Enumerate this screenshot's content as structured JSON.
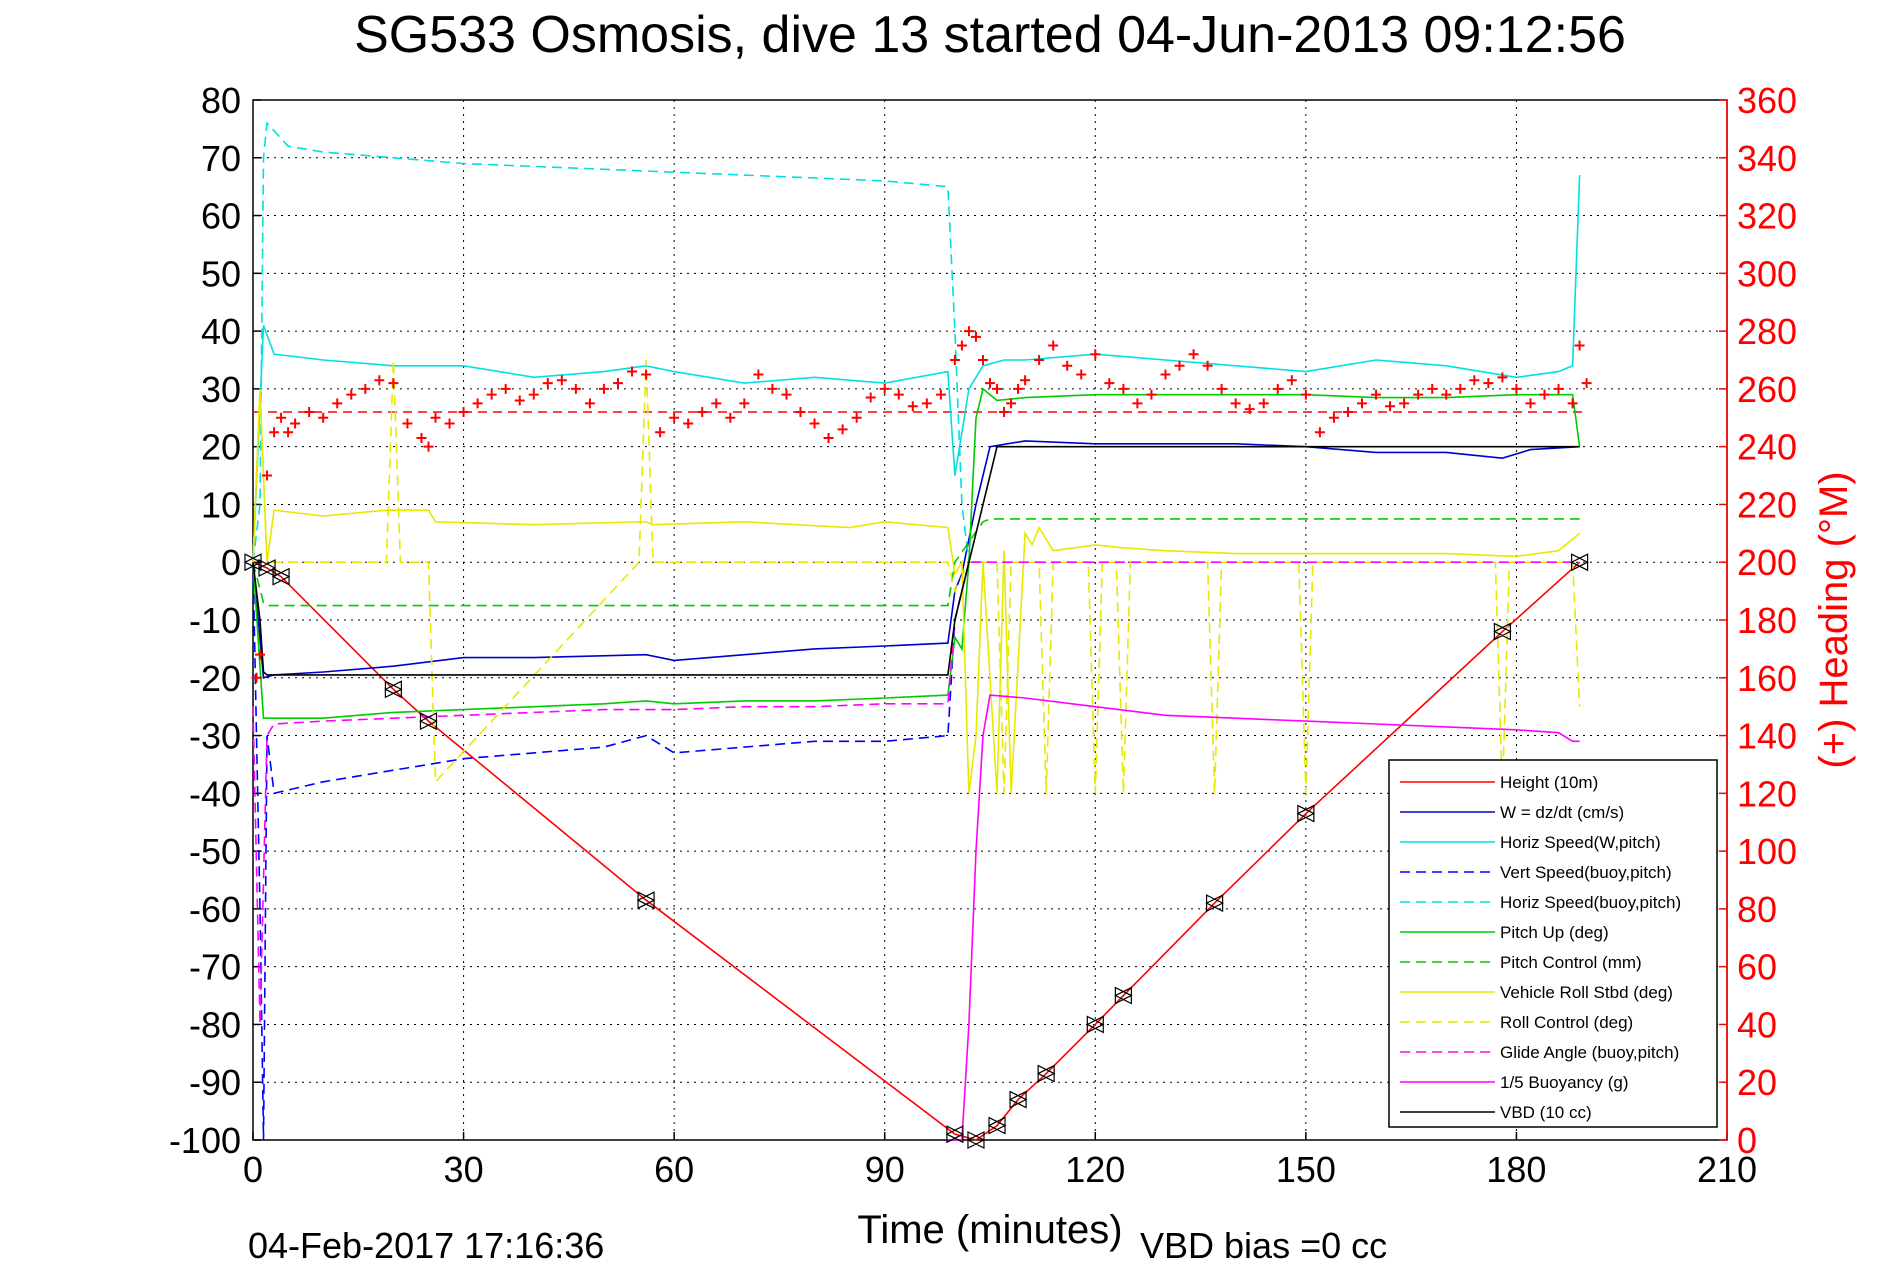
{
  "chart_data": {
    "type": "line",
    "title": "SG533 Osmosis, dive 13 started 04-Jun-2013 09:12:56",
    "xlabel": "Time (minutes)",
    "ylabel_left": "",
    "ylabel_right": "(+) Heading (°M)",
    "xlim": [
      0,
      210
    ],
    "ylim_left": [
      -100,
      80
    ],
    "ylim_right": [
      0,
      360
    ],
    "x_ticks": [
      "0",
      "30",
      "60",
      "90",
      "120",
      "150",
      "180",
      "210"
    ],
    "y_ticks_left": [
      "80",
      "70",
      "60",
      "50",
      "40",
      "30",
      "20",
      "10",
      "0",
      "-10",
      "-20",
      "-30",
      "-40",
      "-50",
      "-60",
      "-70",
      "-80",
      "-90",
      "-100"
    ],
    "y_ticks_right": [
      "360",
      "340",
      "320",
      "300",
      "280",
      "260",
      "240",
      "220",
      "200",
      "180",
      "160",
      "140",
      "120",
      "100",
      "80",
      "60",
      "40",
      "20",
      "0"
    ],
    "grid": true,
    "legend_position": "bottom-right",
    "footer_date": "04-Feb-2017 17:16:36",
    "footer_vbd": "VBD bias =0 cc",
    "target_heading": 252,
    "series": [
      {
        "name": "Height (10m)",
        "color": "#ff0000",
        "style": "solid",
        "x": [
          0,
          2,
          4,
          20,
          25,
          56,
          100,
          103,
          106,
          109,
          113,
          120,
          124,
          137,
          150,
          178,
          189
        ],
        "y": [
          0,
          -1,
          -2.5,
          -22,
          -27.5,
          -58.5,
          -99,
          -100,
          -97.5,
          -93,
          -88.5,
          -80,
          -75,
          -59,
          -43.5,
          -12,
          0
        ]
      },
      {
        "name": "W = dz/dt (cm/s)",
        "color": "#0000cc",
        "style": "solid",
        "x": [
          0,
          1.5,
          3,
          10,
          20,
          30,
          40,
          56,
          60,
          70,
          80,
          90,
          99,
          100,
          101,
          103,
          105,
          110,
          120,
          130,
          140,
          150,
          160,
          170,
          178,
          182,
          189
        ],
        "y": [
          0,
          -20,
          -19.5,
          -19,
          -18,
          -16.5,
          -16.5,
          -16,
          -17,
          -16,
          -15,
          -14.5,
          -14,
          -5,
          -2,
          10,
          20,
          21,
          20.5,
          20.5,
          20.5,
          20,
          19,
          19,
          18,
          19.5,
          20
        ]
      },
      {
        "name": "Horiz Speed(W,pitch)",
        "color": "#00e0e0",
        "style": "solid",
        "x": [
          0,
          1.5,
          3,
          10,
          20,
          30,
          40,
          50,
          56,
          60,
          70,
          80,
          90,
          99,
          100,
          102,
          104,
          107,
          110,
          120,
          130,
          140,
          150,
          160,
          170,
          180,
          186,
          188,
          189
        ],
        "y": [
          0,
          41,
          36,
          35,
          34,
          34,
          32,
          33,
          34,
          33,
          31,
          32,
          31,
          33,
          15,
          30,
          34,
          35,
          35,
          36,
          35,
          34,
          33,
          35,
          34,
          32,
          33,
          34,
          67
        ]
      },
      {
        "name": "Vert Speed(buoy,pitch)",
        "color": "#0000ff",
        "style": "dashed",
        "x": [
          0,
          1,
          1.5,
          2,
          3,
          10,
          20,
          30,
          40,
          50,
          56,
          60,
          70,
          80,
          90,
          99,
          100,
          102,
          104
        ],
        "y": [
          0,
          -60,
          -100,
          -30,
          -40,
          -38,
          -36,
          -34,
          -33,
          -32,
          -30,
          -33,
          -32,
          -31,
          -31,
          -30,
          -10,
          0,
          0
        ]
      },
      {
        "name": "Horiz Speed(buoy,pitch)",
        "color": "#00e0e0",
        "style": "dashed",
        "x": [
          0,
          1,
          1.5,
          2,
          5,
          10,
          20,
          30,
          40,
          50,
          60,
          70,
          80,
          90,
          99,
          100,
          101,
          102,
          104
        ],
        "y": [
          0,
          10,
          70,
          76,
          72,
          71,
          70,
          69,
          68.5,
          68,
          67.5,
          67,
          66.5,
          66,
          65,
          40,
          10,
          0,
          0
        ]
      },
      {
        "name": "Pitch Up (deg)",
        "color": "#00cc00",
        "style": "solid",
        "x": [
          0,
          1.5,
          3,
          10,
          20,
          30,
          40,
          50,
          56,
          60,
          70,
          80,
          90,
          99,
          100,
          101,
          102,
          103,
          104,
          106,
          110,
          120,
          130,
          140,
          150,
          160,
          170,
          180,
          188,
          189
        ],
        "y": [
          0,
          -27,
          -27,
          -27,
          -26,
          -25.5,
          -25,
          -24.5,
          -24,
          -24.5,
          -24,
          -24,
          -23.5,
          -23,
          -13,
          -15,
          0,
          25,
          30,
          28,
          28.5,
          29,
          29,
          29,
          29,
          28.5,
          28.5,
          29,
          29,
          20
        ]
      },
      {
        "name": "Pitch Control (mm)",
        "color": "#00cc00",
        "style": "dashed",
        "x": [
          0,
          1.5,
          2,
          10,
          20,
          40,
          60,
          80,
          99,
          100,
          104,
          105,
          120,
          140,
          160,
          180,
          189
        ],
        "y": [
          0,
          -7,
          -7.5,
          -7.5,
          -7.5,
          -7.5,
          -7.5,
          -7.5,
          -7.5,
          0,
          7,
          7.5,
          7.5,
          7.5,
          7.5,
          7.5,
          7.5
        ]
      },
      {
        "name": "Vehicle Roll Stbd (deg)",
        "color": "#e8e800",
        "style": "solid",
        "x": [
          0,
          1,
          2,
          3,
          10,
          19,
          20,
          21,
          25,
          26,
          40,
          55,
          56,
          57,
          70,
          85,
          90,
          99,
          100,
          101,
          102,
          103,
          104,
          106,
          107,
          108,
          110,
          111,
          112,
          114,
          120,
          124,
          130,
          140,
          150,
          160,
          170,
          180,
          186,
          188,
          189
        ],
        "y": [
          0,
          30,
          0,
          9,
          8,
          9,
          9,
          9,
          9,
          7,
          6.5,
          7,
          7,
          6.5,
          7,
          6,
          7,
          6,
          -2,
          0,
          -40,
          -30,
          0,
          -40,
          2,
          -40,
          5,
          3,
          6,
          2,
          3,
          2.5,
          2,
          1.5,
          1.5,
          1.5,
          1.5,
          1,
          2,
          4,
          5
        ]
      },
      {
        "name": "Roll Control (deg)",
        "color": "#e8e800",
        "style": "dashed",
        "x": [
          0,
          1,
          2,
          3,
          19,
          20,
          21,
          25,
          26,
          55,
          56,
          57,
          99,
          100,
          102,
          104,
          106,
          107,
          108,
          109,
          112,
          113,
          114,
          119,
          120,
          121,
          123,
          124,
          125,
          136,
          137,
          138,
          149,
          150,
          151,
          177,
          178,
          179,
          188,
          189
        ],
        "y": [
          0,
          30,
          0,
          0,
          0,
          35,
          0,
          0,
          -38,
          0,
          35,
          0,
          0,
          -5,
          0,
          0,
          0,
          -40,
          0,
          0,
          0,
          -40,
          0,
          0,
          -40,
          0,
          0,
          -40,
          0,
          0,
          -40,
          0,
          0,
          -40,
          0,
          0,
          -40,
          0,
          0,
          -25
        ]
      },
      {
        "name": "Glide Angle (buoy,pitch)",
        "color": "#ff00ff",
        "style": "dashed",
        "x": [
          0,
          1,
          2,
          3,
          10,
          20,
          30,
          40,
          50,
          60,
          70,
          80,
          90,
          99,
          100,
          102,
          104,
          120,
          140,
          160,
          180,
          189
        ],
        "y": [
          -25,
          -80,
          -30,
          -28,
          -27.5,
          -27,
          -26.5,
          -26,
          -25.5,
          -25.5,
          -25,
          -25,
          -24.5,
          -24.5,
          -10,
          0,
          0,
          0,
          0,
          0,
          0,
          0
        ]
      },
      {
        "name": "1/5 Buoyancy (g)",
        "color": "#ff00ff",
        "style": "solid",
        "x": [
          99,
          100,
          101,
          102,
          103,
          104,
          105,
          110,
          120,
          130,
          140,
          150,
          160,
          170,
          180,
          186,
          188,
          189
        ],
        "y": [
          -100,
          -100,
          -100,
          -80,
          -50,
          -30,
          -23,
          -23.5,
          -25,
          -26.5,
          -27,
          -27.5,
          -28,
          -28.5,
          -29,
          -29.5,
          -31,
          -31
        ]
      },
      {
        "name": "VBD (10 cc)",
        "color": "#000000",
        "style": "solid",
        "x": [
          0,
          1,
          1.5,
          2,
          10,
          40,
          80,
          99,
          100,
          101,
          103,
          105,
          106,
          120,
          150,
          180,
          189
        ],
        "y": [
          0,
          -10,
          -19,
          -19.5,
          -19.5,
          -19.5,
          -19.5,
          -19.5,
          -10,
          -5,
          5,
          15,
          20,
          20,
          20,
          20,
          20
        ]
      }
    ],
    "heading_points": {
      "name": "(+) Heading (°M)",
      "color": "#ff0000",
      "x": [
        0.5,
        1,
        2,
        3,
        4,
        5,
        6,
        8,
        10,
        12,
        14,
        16,
        18,
        20,
        22,
        24,
        25,
        26,
        28,
        30,
        32,
        34,
        36,
        38,
        40,
        42,
        44,
        46,
        48,
        50,
        52,
        54,
        56,
        58,
        60,
        62,
        64,
        66,
        68,
        70,
        72,
        74,
        76,
        78,
        80,
        82,
        84,
        86,
        88,
        90,
        92,
        94,
        96,
        98,
        100,
        101,
        102,
        103,
        104,
        105,
        106,
        107,
        108,
        109,
        110,
        112,
        114,
        116,
        118,
        120,
        122,
        124,
        126,
        128,
        130,
        132,
        134,
        136,
        138,
        140,
        142,
        144,
        146,
        148,
        150,
        152,
        154,
        156,
        158,
        160,
        162,
        164,
        166,
        168,
        170,
        172,
        174,
        176,
        178,
        180,
        182,
        184,
        186,
        188,
        189,
        190
      ],
      "y": [
        160,
        168,
        230,
        245,
        250,
        245,
        248,
        252,
        250,
        255,
        258,
        260,
        263,
        262,
        248,
        243,
        240,
        250,
        248,
        252,
        255,
        258,
        260,
        256,
        258,
        262,
        263,
        260,
        255,
        260,
        262,
        266,
        265,
        245,
        250,
        248,
        252,
        255,
        250,
        255,
        265,
        260,
        258,
        252,
        248,
        243,
        246,
        250,
        257,
        260,
        258,
        254,
        255,
        258,
        270,
        275,
        280,
        278,
        270,
        262,
        260,
        252,
        255,
        260,
        263,
        270,
        275,
        268,
        265,
        272,
        262,
        260,
        255,
        258,
        265,
        268,
        272,
        268,
        260,
        255,
        253,
        255,
        260,
        263,
        258,
        245,
        250,
        252,
        255,
        258,
        254,
        255,
        258,
        260,
        258,
        260,
        263,
        262,
        264,
        260,
        255,
        258,
        260,
        255,
        275,
        262
      ]
    }
  }
}
